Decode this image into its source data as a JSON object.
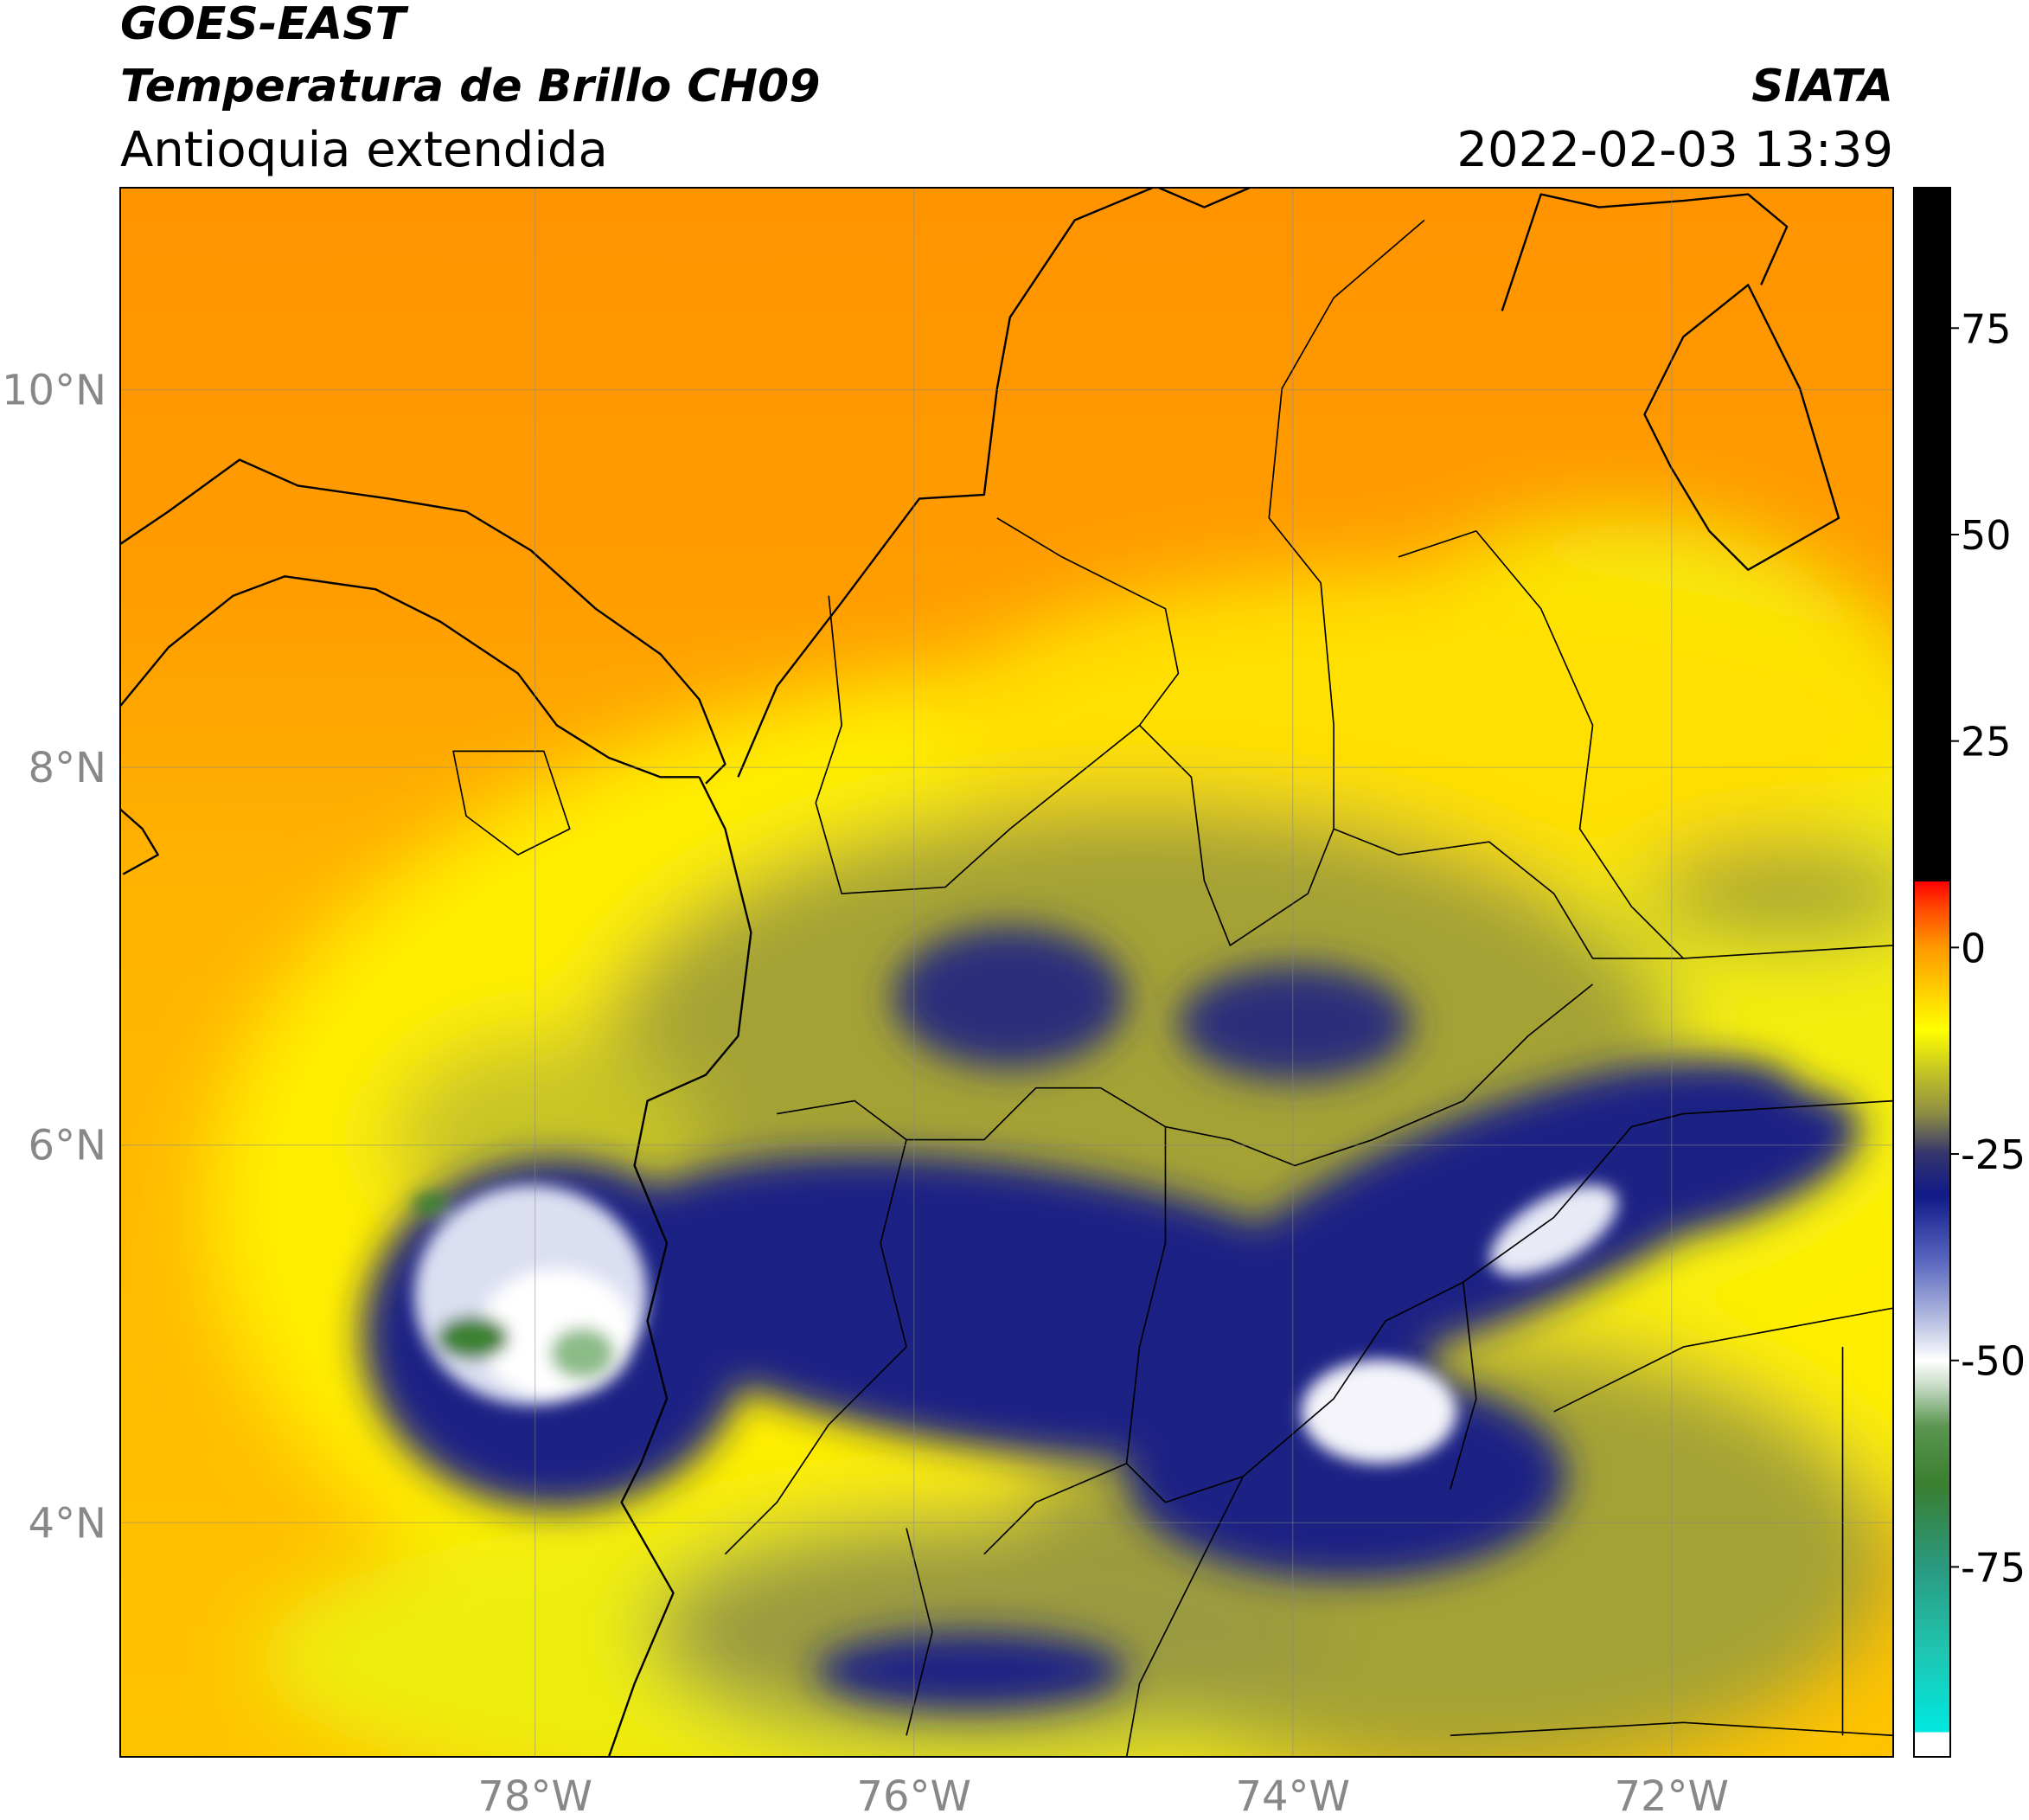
{
  "chart_data": {
    "type": "map",
    "title": "GOES-EAST",
    "subtitle": "Temperatura de Brillo CH09",
    "region": "Antioquia extendida",
    "source": "SIATA",
    "datetime": "2022-02-03 13:39",
    "xlim": [
      -80.19,
      -70.83
    ],
    "ylim": [
      2.76,
      11.07
    ],
    "xticks": [
      {
        "value": -78,
        "label": "78°W"
      },
      {
        "value": -76,
        "label": "76°W"
      },
      {
        "value": -74,
        "label": "74°W"
      },
      {
        "value": -72,
        "label": "72°W"
      }
    ],
    "yticks": [
      {
        "value": 4,
        "label": "4°N"
      },
      {
        "value": 6,
        "label": "6°N"
      },
      {
        "value": 8,
        "label": "8°N"
      },
      {
        "value": 10,
        "label": "10°N"
      }
    ],
    "grid": true,
    "colorbar": {
      "clim": [
        -98,
        92
      ],
      "ticks": [
        -75,
        -50,
        -25,
        0,
        25,
        50,
        75
      ],
      "colormap": [
        {
          "value": -98,
          "color": "#ffffff"
        },
        {
          "value": -95,
          "color": "#ffffff"
        },
        {
          "value": -95,
          "color": "#00e8e0"
        },
        {
          "value": -85,
          "color": "#20c4b0"
        },
        {
          "value": -75,
          "color": "#2a9a80"
        },
        {
          "value": -65,
          "color": "#3a7e30"
        },
        {
          "value": -58,
          "color": "#5a9650"
        },
        {
          "value": -53,
          "color": "#c8dcc8"
        },
        {
          "value": -50,
          "color": "#ffffff"
        },
        {
          "value": -45,
          "color": "#b4bce0"
        },
        {
          "value": -38,
          "color": "#5a68c0"
        },
        {
          "value": -30,
          "color": "#101a88"
        },
        {
          "value": -25,
          "color": "#34346e"
        },
        {
          "value": -20,
          "color": "#8e8e44"
        },
        {
          "value": -15,
          "color": "#c4c424"
        },
        {
          "value": -10,
          "color": "#ffff00"
        },
        {
          "value": -5,
          "color": "#ffcc00"
        },
        {
          "value": 0,
          "color": "#ff9900"
        },
        {
          "value": 5,
          "color": "#ff4400"
        },
        {
          "value": 8,
          "color": "#ff0000"
        },
        {
          "value": 8,
          "color": "#000000"
        },
        {
          "value": 92,
          "color": "#000000"
        }
      ]
    }
  }
}
